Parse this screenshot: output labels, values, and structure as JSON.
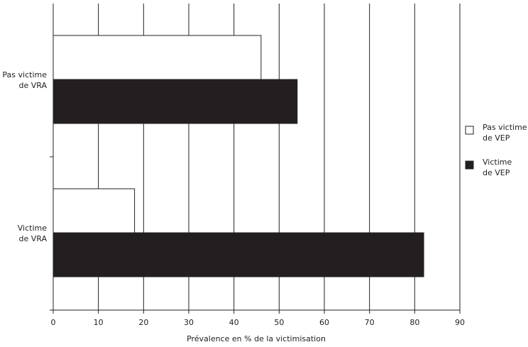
{
  "chart_data": {
    "type": "bar",
    "orientation": "horizontal",
    "xlabel": "Prévalence en % de la victimisation",
    "categories": [
      "Pas victime\nde VRA",
      "Victime\nde VRA"
    ],
    "series": [
      {
        "name": "Pas victime\nde VEP",
        "color": "#ffffff",
        "values": [
          46,
          18
        ]
      },
      {
        "name": "Victime\nde VEP",
        "color": "#231f20",
        "values": [
          54,
          82
        ]
      }
    ],
    "xlim": [
      0,
      90
    ],
    "xticks": [
      0,
      10,
      20,
      30,
      40,
      50,
      60,
      70,
      80,
      90
    ],
    "grid": true,
    "legend": "right"
  }
}
